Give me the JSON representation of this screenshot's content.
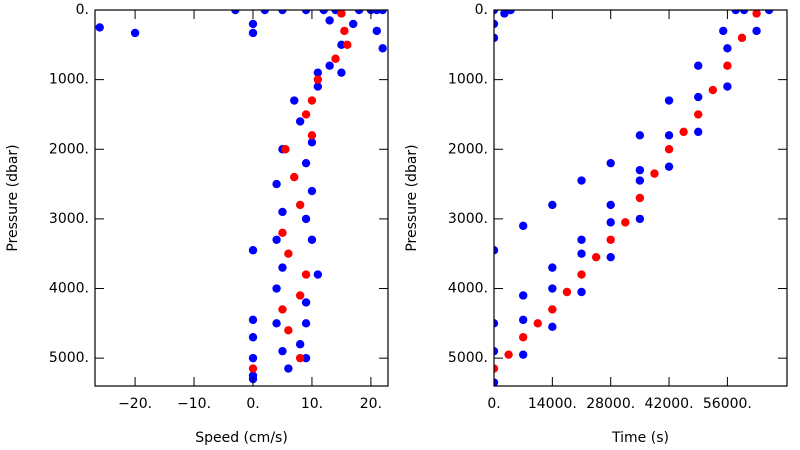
{
  "chart_data": [
    {
      "type": "scatter",
      "x_label": "Speed (cm/s)",
      "y_label": "Pressure (dbar)",
      "xlim": [
        -26.8,
        22.9
      ],
      "ylim": [
        5400,
        0
      ],
      "xticks": [
        {
          "value": -20,
          "label": "−20."
        },
        {
          "value": -10,
          "label": "−10."
        },
        {
          "value": 0,
          "label": "0."
        },
        {
          "value": 10,
          "label": "10."
        },
        {
          "value": 20,
          "label": "20."
        }
      ],
      "yticks": [
        {
          "value": 0,
          "label": "0."
        },
        {
          "value": 1000,
          "label": "1000."
        },
        {
          "value": 2000,
          "label": "2000."
        },
        {
          "value": 3000,
          "label": "3000."
        },
        {
          "value": 4000,
          "label": "4000."
        },
        {
          "value": 5000,
          "label": "5000."
        }
      ],
      "series": [
        {
          "color": "#0000ff",
          "x": [
            -3,
            2,
            5,
            9,
            12,
            14,
            18,
            20,
            21,
            22,
            21,
            22,
            -26,
            -20,
            0,
            0,
            13,
            17,
            15,
            13,
            11,
            15,
            7,
            11,
            8,
            10,
            5,
            9,
            4,
            10,
            5,
            9,
            4,
            10,
            5,
            11,
            4,
            9,
            4,
            9,
            5,
            9,
            0,
            0,
            0,
            0,
            0,
            0,
            6,
            8
          ],
          "values": [
            0,
            0,
            0,
            0,
            0,
            0,
            0,
            0,
            0,
            0,
            300,
            550,
            250,
            330,
            200,
            330,
            150,
            200,
            500,
            800,
            900,
            900,
            1300,
            1100,
            1600,
            1900,
            2000,
            2200,
            2500,
            2600,
            2900,
            3000,
            3300,
            3300,
            3700,
            3800,
            4000,
            4200,
            4500,
            4500,
            4900,
            5000,
            3450,
            4450,
            4700,
            5000,
            5250,
            5300,
            5150,
            4800
          ]
        },
        {
          "color": "#ff0000",
          "x": [
            15,
            15.5,
            16,
            14,
            11,
            10,
            9,
            10,
            5.5,
            7,
            8,
            5,
            6,
            9,
            8,
            5,
            6,
            8,
            0
          ],
          "values": [
            50,
            300,
            500,
            700,
            1000,
            1300,
            1500,
            1800,
            2000,
            2400,
            2800,
            3200,
            3500,
            3800,
            4100,
            4300,
            4600,
            5000,
            5150
          ]
        }
      ]
    },
    {
      "type": "scatter",
      "x_label": "Time (s)",
      "y_label": "Pressure (dbar)",
      "xlim": [
        0,
        70300
      ],
      "ylim": [
        5400,
        0
      ],
      "xticks": [
        {
          "value": 0,
          "label": "0."
        },
        {
          "value": 14000,
          "label": "14000."
        },
        {
          "value": 28000,
          "label": "28000."
        },
        {
          "value": 42000,
          "label": "42000."
        },
        {
          "value": 56000,
          "label": "56000."
        }
      ],
      "yticks": [
        {
          "value": 0,
          "label": "0."
        },
        {
          "value": 1000,
          "label": "1000."
        },
        {
          "value": 2000,
          "label": "2000."
        },
        {
          "value": 3000,
          "label": "3000."
        },
        {
          "value": 4000,
          "label": "4000."
        },
        {
          "value": 5000,
          "label": "5000."
        }
      ],
      "series": [
        {
          "color": "#0000ff",
          "x": [
            0,
            0,
            7000,
            7000,
            14000,
            14000,
            21000,
            21000,
            28000,
            28000,
            35000,
            35000,
            42000,
            42000,
            49000,
            49000,
            56000,
            56000,
            63000,
            60000,
            66000,
            0,
            7000,
            14000,
            21000,
            28000,
            35000,
            0,
            7000,
            14000,
            21000,
            28000,
            35000,
            42000,
            49000,
            55000,
            58000,
            0,
            0,
            0,
            2500,
            4000
          ],
          "values": [
            5350,
            4900,
            4950,
            4450,
            4550,
            4000,
            4050,
            3500,
            3550,
            3050,
            3000,
            2450,
            2250,
            1800,
            1750,
            1250,
            1100,
            550,
            300,
            0,
            0,
            4500,
            4100,
            3700,
            3300,
            2800,
            2300,
            3450,
            3100,
            2800,
            2450,
            2200,
            1800,
            1300,
            800,
            300,
            0,
            0,
            200,
            400,
            50,
            0
          ]
        },
        {
          "color": "#ff0000",
          "x": [
            0,
            3500,
            7000,
            10500,
            14000,
            17500,
            21000,
            24500,
            28000,
            31500,
            35000,
            38500,
            42000,
            45500,
            49000,
            52500,
            56000,
            59500,
            63000
          ],
          "values": [
            5150,
            4950,
            4700,
            4500,
            4300,
            4050,
            3800,
            3550,
            3300,
            3050,
            2700,
            2350,
            2000,
            1750,
            1500,
            1150,
            800,
            400,
            50
          ]
        }
      ]
    }
  ]
}
